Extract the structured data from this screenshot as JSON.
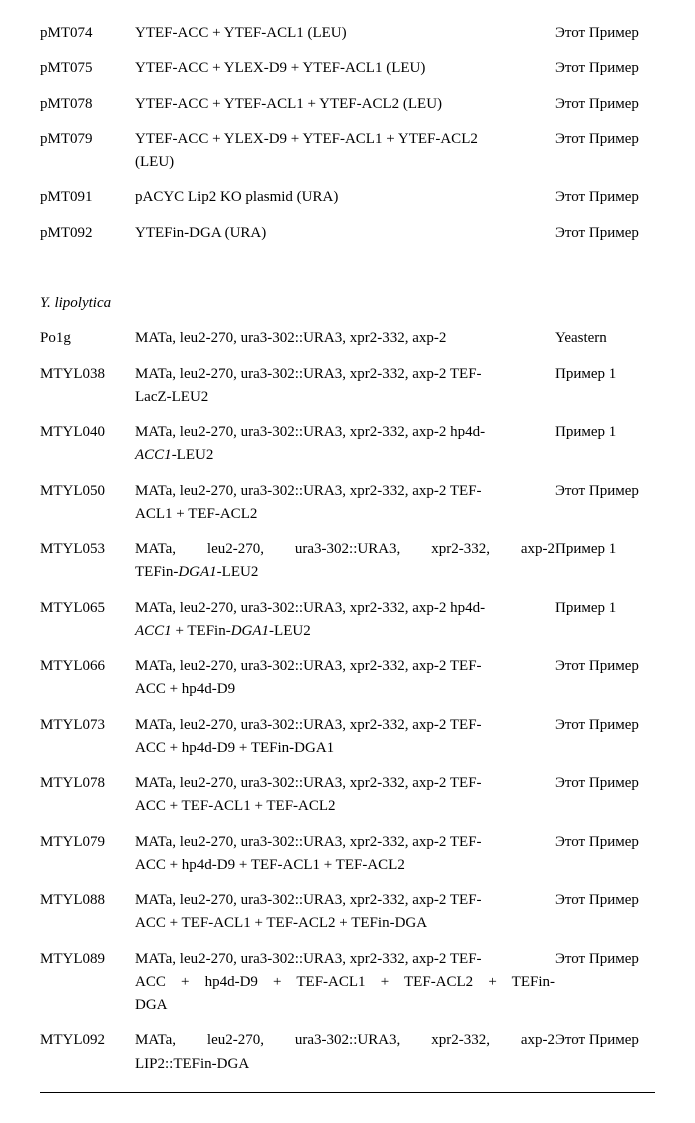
{
  "top_rows": [
    {
      "id": "pMT074",
      "desc_plain": "YTEF-ACC + YTEF-ACL1 (LEU)",
      "src": "Этот Пример"
    },
    {
      "id": "pMT075",
      "desc_plain": "YTEF-ACC + YLEX-D9 + YTEF-ACL1 (LEU)",
      "src": "Этот Пример"
    },
    {
      "id": "pMT078",
      "desc_plain": "YTEF-ACC + YTEF-ACL1 + YTEF-ACL2 (LEU)",
      "src": "Этот Пример"
    },
    {
      "id": "pMT079",
      "desc_lines": [
        "YTEF-ACC + YLEX-D9 + YTEF-ACL1 + YTEF-ACL2",
        "(LEU)"
      ],
      "src": "Этот Пример"
    },
    {
      "id": "pMT091",
      "desc_plain": "pACYC Lip2 KO plasmid (URA)",
      "src": "Этот Пример"
    },
    {
      "id": "pMT092",
      "desc_plain": "YTEFin-DGA (URA)",
      "src": "Этот Пример"
    }
  ],
  "section_heading": "Y. lipolytica",
  "bottom_rows": [
    {
      "id": "Po1g",
      "desc_plain": "MATa, leu2-270, ura3-302::URA3, xpr2-332, axp-2",
      "src": "Yeastern"
    },
    {
      "id": "MTYL038",
      "desc_lines": [
        "MATa, leu2-270, ura3-302::URA3, xpr2-332, axp-2 TEF-",
        "LacZ-LEU2"
      ],
      "src": "Пример 1"
    },
    {
      "id": "MTYL040",
      "desc_html_lines": [
        "MATa, leu2-270, ura3-302::URA3, xpr2-332, axp-2 hp4d-",
        "<span class=\"italic\">ACC1</span>-LEU2"
      ],
      "src": "Пример 1"
    },
    {
      "id": "MTYL050",
      "desc_lines": [
        "MATa, leu2-270, ura3-302::URA3, xpr2-332, axp-2 TEF-",
        "ACL1 + TEF-ACL2"
      ],
      "src": "Этот Пример"
    },
    {
      "id": "MTYL053",
      "desc_html_lines": [
        "<span class=\"justify\" style=\"display:block;\">MATa, leu2-270, ura3-302::URA3, xpr2-332, axp-2</span>",
        "TEFin-<span class=\"italic\">DGA1</span>-LEU2"
      ],
      "src": "Пример 1"
    },
    {
      "id": "MTYL065",
      "desc_html_lines": [
        "MATa, leu2-270, ura3-302::URA3, xpr2-332, axp-2 hp4d-",
        "<span class=\"italic\">ACC1</span> + TEFin-<span class=\"italic\">DGA1</span>-LEU2"
      ],
      "src": "Пример 1"
    },
    {
      "id": "MTYL066",
      "desc_lines": [
        "MATa, leu2-270, ura3-302::URA3, xpr2-332, axp-2 TEF-",
        "ACC + hp4d-D9"
      ],
      "src": "Этот Пример"
    },
    {
      "id": "MTYL073",
      "desc_lines": [
        "MATa, leu2-270, ura3-302::URA3, xpr2-332, axp-2 TEF-",
        "ACC + hp4d-D9 + TEFin-DGA1"
      ],
      "src": "Этот Пример"
    },
    {
      "id": "MTYL078",
      "desc_lines": [
        "MATa, leu2-270, ura3-302::URA3, xpr2-332, axp-2 TEF-",
        "ACC + TEF-ACL1 + TEF-ACL2"
      ],
      "src": "Этот Пример"
    },
    {
      "id": "MTYL079",
      "desc_lines": [
        "MATa, leu2-270, ura3-302::URA3, xpr2-332, axp-2 TEF-",
        "ACC + hp4d-D9 + TEF-ACL1 + TEF-ACL2"
      ],
      "src": "Этот Пример"
    },
    {
      "id": "MTYL088",
      "desc_lines": [
        "MATa, leu2-270, ura3-302::URA3, xpr2-332, axp-2 TEF-",
        "ACC + TEF-ACL1 + TEF-ACL2 + TEFin-DGA"
      ],
      "src": "Этот Пример"
    },
    {
      "id": "MTYL089",
      "desc_html_lines": [
        "MATa, leu2-270, ura3-302::URA3, xpr2-332, axp-2 TEF-",
        "<span class=\"justify\" style=\"display:block;\">ACC + hp4d-D9 + TEF-ACL1 + TEF-ACL2 + TEFin-</span>",
        "DGA"
      ],
      "src": "Этот Пример"
    },
    {
      "id": "MTYL092",
      "desc_html_lines": [
        "<span class=\"justify\" style=\"display:block;\">MATa, leu2-270, ura3-302::URA3, xpr2-332, axp-2</span>",
        "LIP2::TEFin-DGA"
      ],
      "src": "Этот Пример"
    }
  ]
}
